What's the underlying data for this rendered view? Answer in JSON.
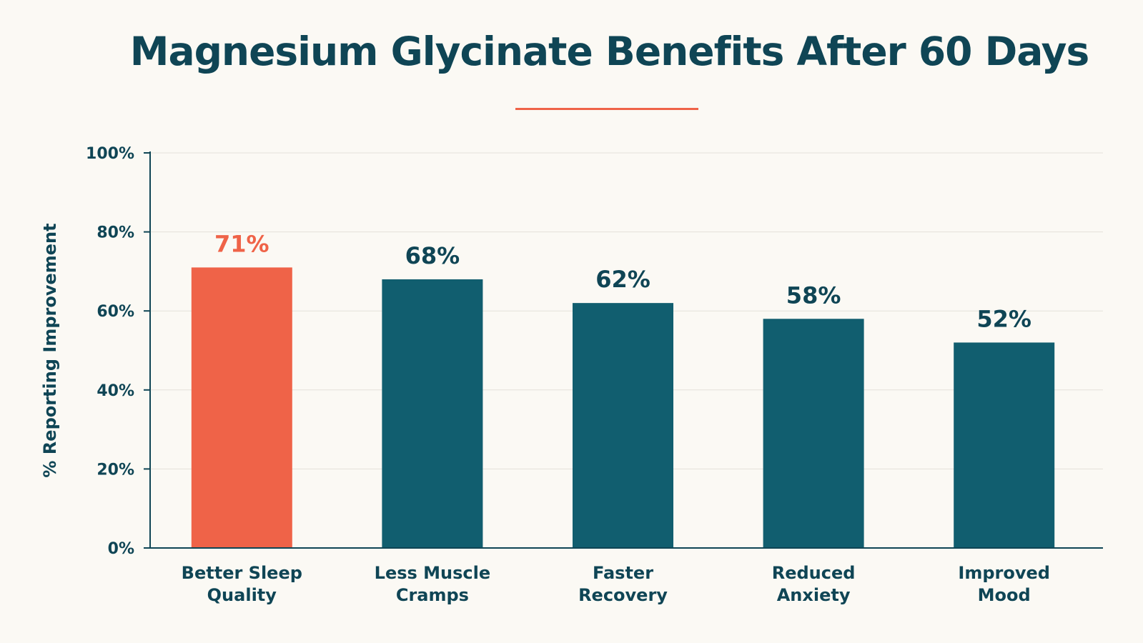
{
  "chart_data": {
    "type": "bar",
    "title": "Magnesium Glycinate Benefits After 60 Days",
    "ylabel": "% Reporting Improvement",
    "xlabel": "",
    "ylim": [
      0,
      100
    ],
    "yticks": [
      0,
      20,
      40,
      60,
      80,
      100
    ],
    "ytick_labels": [
      "0%",
      "20%",
      "40%",
      "60%",
      "80%",
      "100%"
    ],
    "categories": [
      [
        "Better Sleep",
        "Quality"
      ],
      [
        "Less Muscle",
        "Cramps"
      ],
      [
        "Faster",
        "Recovery"
      ],
      [
        "Reduced",
        "Anxiety"
      ],
      [
        "Improved",
        "Mood"
      ]
    ],
    "values": [
      71,
      68,
      62,
      58,
      52
    ],
    "value_labels": [
      "71%",
      "68%",
      "62%",
      "58%",
      "52%"
    ],
    "highlight_index": 0,
    "grid": true,
    "colors": {
      "highlight": "#ef6348",
      "bar": "#115e6f",
      "text": "#0f4555",
      "grid": "#e4e1da",
      "axis": "#0f4555",
      "underline": "#ef6348",
      "background": "#fbf9f4"
    }
  }
}
